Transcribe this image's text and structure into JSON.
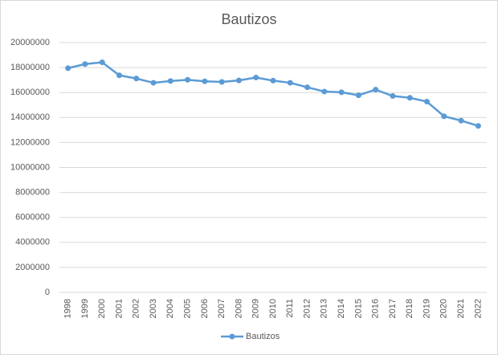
{
  "chart_data": {
    "type": "line",
    "title": "Bautizos",
    "categories": [
      "1998",
      "1999",
      "2000",
      "2001",
      "2002",
      "2003",
      "2004",
      "2005",
      "2006",
      "2007",
      "2008",
      "2009",
      "2010",
      "2011",
      "2012",
      "2013",
      "2014",
      "2015",
      "2016",
      "2017",
      "2018",
      "2019",
      "2020",
      "2021",
      "2022"
    ],
    "series": [
      {
        "name": "Bautizos",
        "color": "#5b9bd5",
        "values": [
          17950000,
          18280000,
          18420000,
          17380000,
          17120000,
          16780000,
          16920000,
          17020000,
          16900000,
          16850000,
          16970000,
          17200000,
          16950000,
          16780000,
          16420000,
          16080000,
          16020000,
          15780000,
          16230000,
          15720000,
          15580000,
          15270000,
          14100000,
          13750000,
          13330000
        ]
      }
    ],
    "ylim": [
      0,
      20000000
    ],
    "yticks": [
      0,
      2000000,
      4000000,
      6000000,
      8000000,
      10000000,
      12000000,
      14000000,
      16000000,
      18000000,
      20000000
    ],
    "grid": true,
    "legend": "bottom"
  }
}
